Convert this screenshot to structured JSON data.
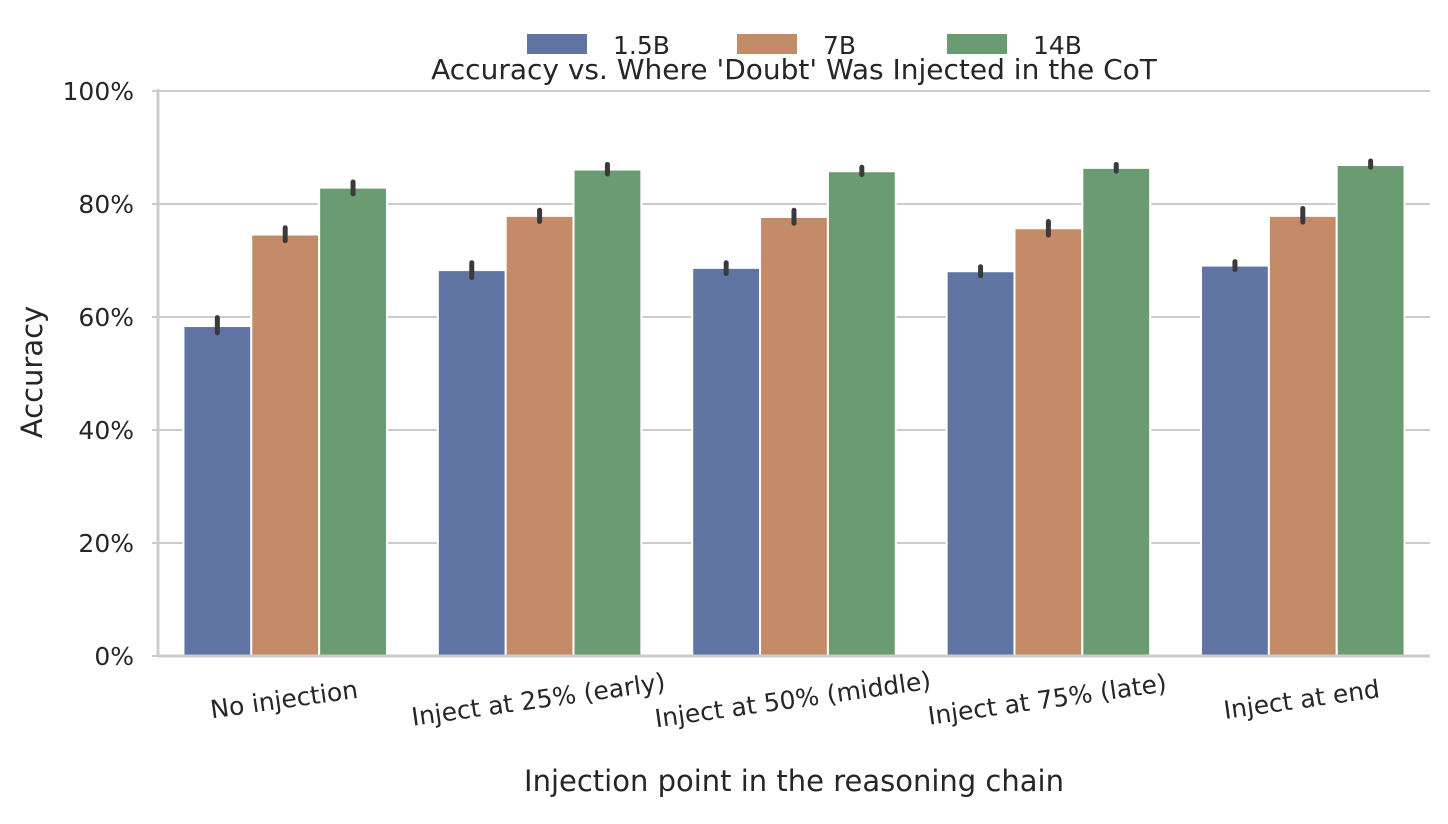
{
  "chart_data": {
    "type": "bar",
    "title": "Accuracy vs. Where 'Doubt' Was Injected in the CoT",
    "xlabel": "Injection point in the reasoning chain",
    "ylabel": "Accuracy",
    "ylim": [
      0,
      100
    ],
    "yticks": [
      0,
      20,
      40,
      60,
      80,
      100
    ],
    "ytick_labels": [
      "0%",
      "20%",
      "40%",
      "60%",
      "80%",
      "100%"
    ],
    "grid": "horizontal",
    "legend_position": "top-center",
    "categories": [
      "No injection",
      "Inject at 25% (early)",
      "Inject at 50% (middle)",
      "Inject at 75% (late)",
      "Inject at end"
    ],
    "series": [
      {
        "name": "1.5B",
        "color": "#5f74a3",
        "values": [
          58.4,
          68.3,
          68.7,
          68.1,
          69.1
        ],
        "err_low": [
          57.2,
          67.0,
          67.7,
          67.3,
          68.4
        ],
        "err_high": [
          59.9,
          69.6,
          69.6,
          68.9,
          69.8
        ]
      },
      {
        "name": "7B",
        "color": "#c38b68",
        "values": [
          74.6,
          77.9,
          77.7,
          75.7,
          77.9
        ],
        "err_low": [
          73.5,
          76.9,
          76.6,
          74.5,
          76.8
        ],
        "err_high": [
          75.8,
          78.9,
          78.9,
          76.9,
          79.2
        ]
      },
      {
        "name": "14B",
        "color": "#6b9c71",
        "values": [
          82.9,
          86.1,
          85.8,
          86.4,
          86.9
        ],
        "err_low": [
          81.8,
          85.3,
          85.2,
          85.8,
          86.5
        ],
        "err_high": [
          83.9,
          87.0,
          86.5,
          87.0,
          87.6
        ]
      }
    ]
  }
}
